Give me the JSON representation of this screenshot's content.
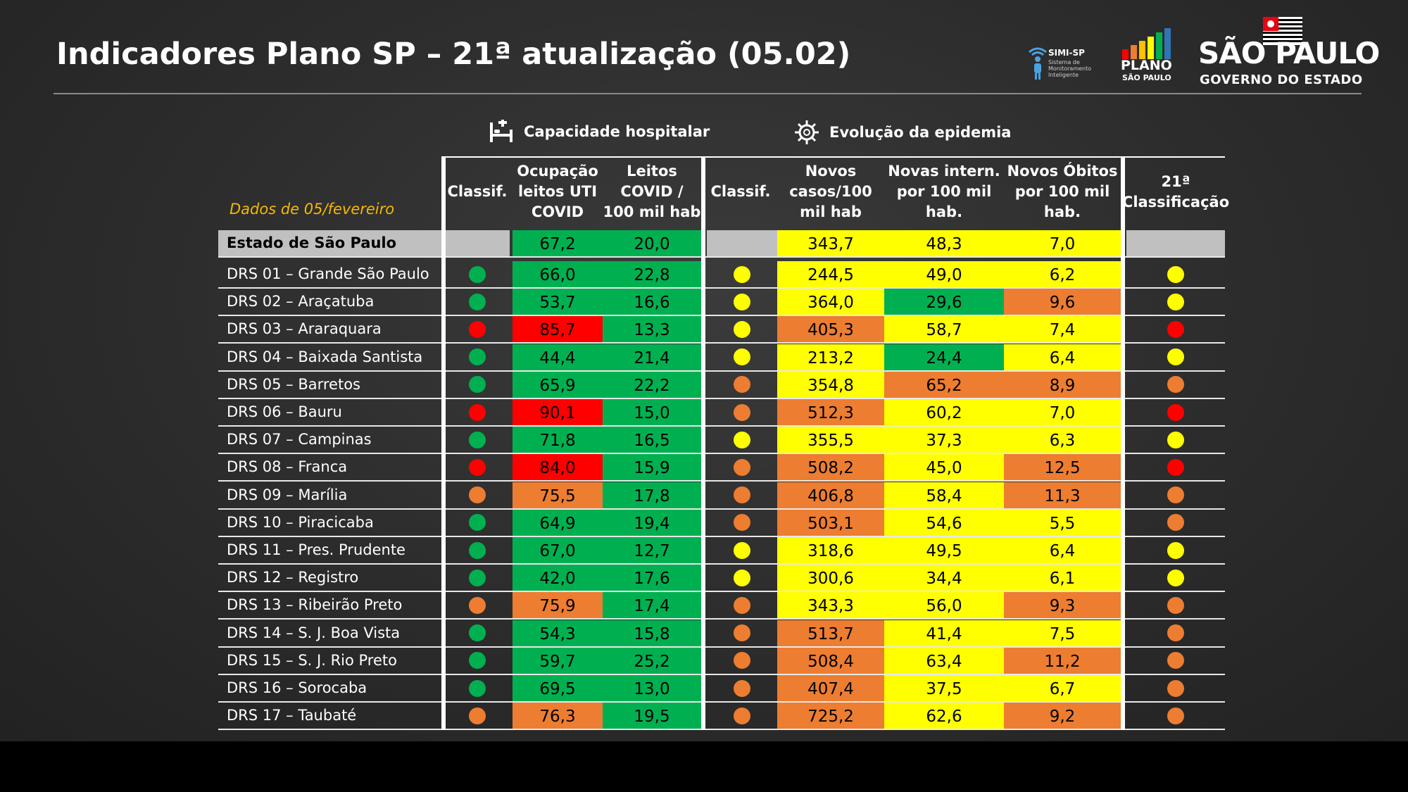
{
  "title": "Indicadores Plano SP – 21ª atualização (05.02)",
  "logos": {
    "simi": "SIMI-SP",
    "simi_sub": "Sistema de Monitoramento Inteligente",
    "plano_line1": "PLANO",
    "plano_line2": "SÃO PAULO",
    "sp_line1": "SÃO PAULO",
    "sp_line2": "GOVERNO DO ESTADO"
  },
  "sections": {
    "hospital": "Capacidade hospitalar",
    "epidemic": "Evolução da epidemia"
  },
  "data_date": "Dados de 05/fevereiro",
  "headers": {
    "classif_hosp": "Classif.",
    "occupancy": "Ocupação leitos UTI COVID",
    "beds": "Leitos COVID / 100 mil hab",
    "classif_epi": "Classif.",
    "cases": "Novos casos/100 mil hab",
    "hospitalizations": "Novas intern. por 100 mil hab.",
    "deaths": "Novos Óbitos por 100 mil hab.",
    "final": "21ª Classificação"
  },
  "colors": {
    "green": "#00b050",
    "yellow": "#ffff00",
    "orange": "#ed7d31",
    "red": "#ff0000",
    "grey": "#c0c0c0"
  },
  "state_row": {
    "name": "Estado de São Paulo",
    "occupancy": "67,2",
    "beds": "20,0",
    "cases": "343,7",
    "hospitalizations": "48,3",
    "deaths": "7,0"
  },
  "rows": [
    {
      "name": "DRS 01 – Grande São Paulo",
      "hosp": "green",
      "occ": "66,0",
      "occ_c": "green",
      "beds": "22,8",
      "epi": "yellow",
      "cases": "244,5",
      "cases_c": "yellow",
      "intern": "49,0",
      "intern_c": "yellow",
      "deaths": "6,2",
      "deaths_c": "yellow",
      "final": "yellow"
    },
    {
      "name": "DRS 02 – Araçatuba",
      "hosp": "green",
      "occ": "53,7",
      "occ_c": "green",
      "beds": "16,6",
      "epi": "yellow",
      "cases": "364,0",
      "cases_c": "yellow",
      "intern": "29,6",
      "intern_c": "green",
      "deaths": "9,6",
      "deaths_c": "orange",
      "final": "yellow"
    },
    {
      "name": "DRS 03 – Araraquara",
      "hosp": "red",
      "occ": "85,7",
      "occ_c": "red",
      "beds": "13,3",
      "epi": "yellow",
      "cases": "405,3",
      "cases_c": "orange",
      "intern": "58,7",
      "intern_c": "yellow",
      "deaths": "7,4",
      "deaths_c": "yellow",
      "final": "red"
    },
    {
      "name": "DRS 04 – Baixada Santista",
      "hosp": "green",
      "occ": "44,4",
      "occ_c": "green",
      "beds": "21,4",
      "epi": "yellow",
      "cases": "213,2",
      "cases_c": "yellow",
      "intern": "24,4",
      "intern_c": "green",
      "deaths": "6,4",
      "deaths_c": "yellow",
      "final": "yellow"
    },
    {
      "name": "DRS 05 – Barretos",
      "hosp": "green",
      "occ": "65,9",
      "occ_c": "green",
      "beds": "22,2",
      "epi": "orange",
      "cases": "354,8",
      "cases_c": "yellow",
      "intern": "65,2",
      "intern_c": "orange",
      "deaths": "8,9",
      "deaths_c": "orange",
      "final": "orange"
    },
    {
      "name": "DRS 06 – Bauru",
      "hosp": "red",
      "occ": "90,1",
      "occ_c": "red",
      "beds": "15,0",
      "epi": "orange",
      "cases": "512,3",
      "cases_c": "orange",
      "intern": "60,2",
      "intern_c": "yellow",
      "deaths": "7,0",
      "deaths_c": "yellow",
      "final": "red"
    },
    {
      "name": "DRS 07 – Campinas",
      "hosp": "green",
      "occ": "71,8",
      "occ_c": "green",
      "beds": "16,5",
      "epi": "yellow",
      "cases": "355,5",
      "cases_c": "yellow",
      "intern": "37,3",
      "intern_c": "yellow",
      "deaths": "6,3",
      "deaths_c": "yellow",
      "final": "yellow"
    },
    {
      "name": "DRS 08 – Franca",
      "hosp": "red",
      "occ": "84,0",
      "occ_c": "red",
      "beds": "15,9",
      "epi": "orange",
      "cases": "508,2",
      "cases_c": "orange",
      "intern": "45,0",
      "intern_c": "yellow",
      "deaths": "12,5",
      "deaths_c": "orange",
      "final": "red"
    },
    {
      "name": "DRS 09 – Marília",
      "hosp": "orange",
      "occ": "75,5",
      "occ_c": "orange",
      "beds": "17,8",
      "epi": "orange",
      "cases": "406,8",
      "cases_c": "orange",
      "intern": "58,4",
      "intern_c": "yellow",
      "deaths": "11,3",
      "deaths_c": "orange",
      "final": "orange"
    },
    {
      "name": "DRS 10 – Piracicaba",
      "hosp": "green",
      "occ": "64,9",
      "occ_c": "green",
      "beds": "19,4",
      "epi": "orange",
      "cases": "503,1",
      "cases_c": "orange",
      "intern": "54,6",
      "intern_c": "yellow",
      "deaths": "5,5",
      "deaths_c": "yellow",
      "final": "orange"
    },
    {
      "name": "DRS 11 – Pres. Prudente",
      "hosp": "green",
      "occ": "67,0",
      "occ_c": "green",
      "beds": "12,7",
      "epi": "yellow",
      "cases": "318,6",
      "cases_c": "yellow",
      "intern": "49,5",
      "intern_c": "yellow",
      "deaths": "6,4",
      "deaths_c": "yellow",
      "final": "yellow"
    },
    {
      "name": "DRS 12 – Registro",
      "hosp": "green",
      "occ": "42,0",
      "occ_c": "green",
      "beds": "17,6",
      "epi": "yellow",
      "cases": "300,6",
      "cases_c": "yellow",
      "intern": "34,4",
      "intern_c": "yellow",
      "deaths": "6,1",
      "deaths_c": "yellow",
      "final": "yellow"
    },
    {
      "name": "DRS 13 – Ribeirão Preto",
      "hosp": "orange",
      "occ": "75,9",
      "occ_c": "orange",
      "beds": "17,4",
      "epi": "orange",
      "cases": "343,3",
      "cases_c": "yellow",
      "intern": "56,0",
      "intern_c": "yellow",
      "deaths": "9,3",
      "deaths_c": "orange",
      "final": "orange"
    },
    {
      "name": "DRS 14 – S. J. Boa Vista",
      "hosp": "green",
      "occ": "54,3",
      "occ_c": "green",
      "beds": "15,8",
      "epi": "orange",
      "cases": "513,7",
      "cases_c": "orange",
      "intern": "41,4",
      "intern_c": "yellow",
      "deaths": "7,5",
      "deaths_c": "yellow",
      "final": "orange"
    },
    {
      "name": "DRS 15 – S. J. Rio Preto",
      "hosp": "green",
      "occ": "59,7",
      "occ_c": "green",
      "beds": "25,2",
      "epi": "orange",
      "cases": "508,4",
      "cases_c": "orange",
      "intern": "63,4",
      "intern_c": "yellow",
      "deaths": "11,2",
      "deaths_c": "orange",
      "final": "orange"
    },
    {
      "name": "DRS 16 – Sorocaba",
      "hosp": "green",
      "occ": "69,5",
      "occ_c": "green",
      "beds": "13,0",
      "epi": "orange",
      "cases": "407,4",
      "cases_c": "orange",
      "intern": "37,5",
      "intern_c": "yellow",
      "deaths": "6,7",
      "deaths_c": "yellow",
      "final": "orange"
    },
    {
      "name": "DRS 17 – Taubaté",
      "hosp": "orange",
      "occ": "76,3",
      "occ_c": "orange",
      "beds": "19,5",
      "epi": "orange",
      "cases": "725,2",
      "cases_c": "orange",
      "intern": "62,6",
      "intern_c": "yellow",
      "deaths": "9,2",
      "deaths_c": "orange",
      "final": "orange"
    }
  ]
}
